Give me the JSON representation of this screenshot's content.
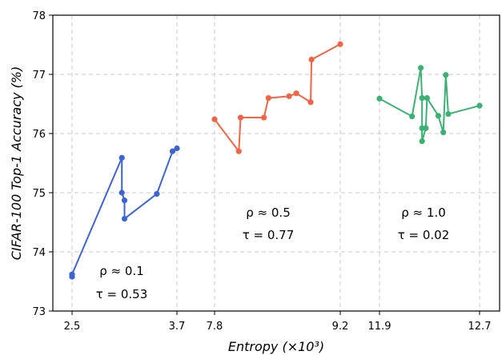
{
  "chart_data": {
    "type": "line",
    "xlabel": "Entropy (×10³)",
    "ylabel": "CIFAR-100 Top-1 Accuracy (%)",
    "ylim": [
      73,
      78
    ],
    "yticks": [
      "73",
      "74",
      "75",
      "76",
      "77",
      "78"
    ],
    "xticks": [
      "2.5",
      "3.7",
      "7.8",
      "9.2",
      "11.9",
      "12.7"
    ],
    "grid": true,
    "series": [
      {
        "color": "#3d63d4",
        "rho_label": "ρ ≈ 0.1",
        "tau_label": "τ = 0.53",
        "x": [
          2.5,
          2.5,
          3.07,
          3.07,
          3.1,
          3.1,
          3.47,
          3.65,
          3.7
        ],
        "y": [
          73.58,
          73.62,
          75.59,
          75.0,
          74.87,
          74.56,
          74.98,
          75.7,
          75.75
        ]
      },
      {
        "color": "#f26444",
        "rho_label": "ρ ≈ 0.5",
        "tau_label": "τ = 0.77",
        "x": [
          7.8,
          8.07,
          8.09,
          8.35,
          8.4,
          8.63,
          8.71,
          8.87,
          8.88,
          9.2
        ],
        "y": [
          76.24,
          75.7,
          76.27,
          76.27,
          76.6,
          76.63,
          76.68,
          76.53,
          77.25,
          77.51
        ]
      },
      {
        "color": "#3bb273",
        "rho_label": "ρ ≈ 1.0",
        "tau_label": "τ = 0.02",
        "x": [
          11.9,
          12.16,
          12.23,
          12.24,
          12.24,
          12.24,
          12.27,
          12.28,
          12.37,
          12.41,
          12.43,
          12.45,
          12.7
        ],
        "y": [
          76.59,
          76.29,
          77.11,
          76.6,
          76.09,
          75.87,
          76.09,
          76.6,
          76.3,
          76.02,
          76.99,
          76.33,
          76.47
        ]
      }
    ]
  }
}
